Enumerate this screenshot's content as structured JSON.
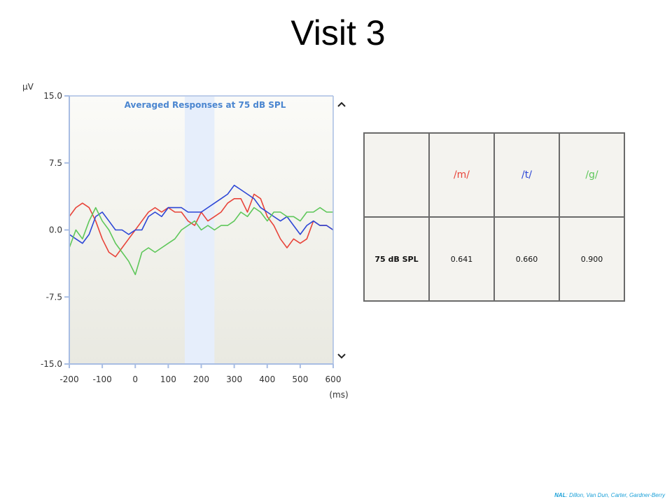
{
  "title": "Visit 3",
  "credit": {
    "org": "NAL",
    "authors": ": Dillon,  Van Dun, Carter, Gardner-Berry"
  },
  "colors": {
    "m": "#e8443a",
    "t": "#2d47d6",
    "g": "#5ec75a",
    "accent_blue": "#4b86d0"
  },
  "icons": {
    "scroll_up": "chevron-up-icon",
    "scroll_down": "chevron-down-icon"
  },
  "table": {
    "headers": [
      "",
      "/m/",
      "/t/",
      "/g/"
    ],
    "rows": [
      {
        "label": "75 dB SPL",
        "values": [
          "0.641",
          "0.660",
          "0.900"
        ]
      }
    ]
  },
  "chart_data": {
    "type": "line",
    "title": "Averaged Responses at 75 dB SPL",
    "ylabel": "µV",
    "xlabel": "(ms)",
    "xlim": [
      -200,
      600
    ],
    "ylim": [
      -15,
      15
    ],
    "xticks": [
      "-200",
      "-100",
      "0",
      "100",
      "200",
      "300",
      "400",
      "500",
      "600"
    ],
    "yticks": [
      "15.0",
      "7.5",
      "0.0",
      "-7.5",
      "-15.0"
    ],
    "shaded_window": [
      150,
      240
    ],
    "grid": false,
    "series": [
      {
        "key": "m",
        "x": [
          -200,
          -180,
          -160,
          -140,
          -120,
          -100,
          -80,
          -60,
          -40,
          -20,
          0,
          20,
          40,
          60,
          80,
          100,
          120,
          140,
          160,
          180,
          200,
          220,
          240,
          260,
          280,
          300,
          320,
          340,
          360,
          380,
          400,
          420,
          440,
          460,
          480,
          500,
          520,
          540,
          560,
          580,
          600
        ],
        "y": [
          1.5,
          2.5,
          3.0,
          2.5,
          1.0,
          -1.0,
          -2.5,
          -3.0,
          -2.0,
          -1.0,
          0.0,
          1.0,
          2.0,
          2.5,
          2.0,
          2.5,
          2.0,
          2.0,
          1.0,
          0.5,
          2.0,
          1.0,
          1.5,
          2.0,
          3.0,
          3.5,
          3.5,
          2.0,
          4.0,
          3.5,
          1.5,
          0.5,
          -1.0,
          -2.0,
          -1.0,
          -1.5,
          -1.0,
          1.0,
          0.5,
          0.5,
          0.0
        ]
      },
      {
        "key": "t",
        "x": [
          -200,
          -180,
          -160,
          -140,
          -120,
          -100,
          -80,
          -60,
          -40,
          -20,
          0,
          20,
          40,
          60,
          80,
          100,
          120,
          140,
          160,
          180,
          200,
          220,
          240,
          260,
          280,
          300,
          320,
          340,
          360,
          380,
          400,
          420,
          440,
          460,
          480,
          500,
          520,
          540,
          560,
          580,
          600
        ],
        "y": [
          -0.5,
          -1.0,
          -1.5,
          -0.5,
          1.5,
          2.0,
          1.0,
          0.0,
          0.0,
          -0.5,
          0.0,
          0.0,
          1.5,
          2.0,
          1.5,
          2.5,
          2.5,
          2.5,
          2.0,
          2.0,
          2.0,
          2.5,
          3.0,
          3.5,
          4.0,
          5.0,
          4.5,
          4.0,
          3.5,
          2.5,
          2.0,
          1.5,
          1.0,
          1.5,
          0.5,
          -0.5,
          0.5,
          1.0,
          0.5,
          0.5,
          0.0
        ]
      },
      {
        "key": "g",
        "x": [
          -200,
          -180,
          -160,
          -140,
          -120,
          -100,
          -80,
          -60,
          -40,
          -20,
          0,
          20,
          40,
          60,
          80,
          100,
          120,
          140,
          160,
          180,
          200,
          220,
          240,
          260,
          280,
          300,
          320,
          340,
          360,
          380,
          400,
          420,
          440,
          460,
          480,
          500,
          520,
          540,
          560,
          580,
          600
        ],
        "y": [
          -2.0,
          0.0,
          -1.0,
          1.0,
          2.5,
          1.0,
          0.0,
          -1.5,
          -2.5,
          -3.5,
          -5.0,
          -2.5,
          -2.0,
          -2.5,
          -2.0,
          -1.5,
          -1.0,
          0.0,
          0.5,
          1.0,
          0.0,
          0.5,
          0.0,
          0.5,
          0.5,
          1.0,
          2.0,
          1.5,
          2.5,
          2.0,
          1.0,
          2.0,
          2.0,
          1.5,
          1.5,
          1.0,
          2.0,
          2.0,
          2.5,
          2.0,
          2.0
        ]
      }
    ]
  }
}
